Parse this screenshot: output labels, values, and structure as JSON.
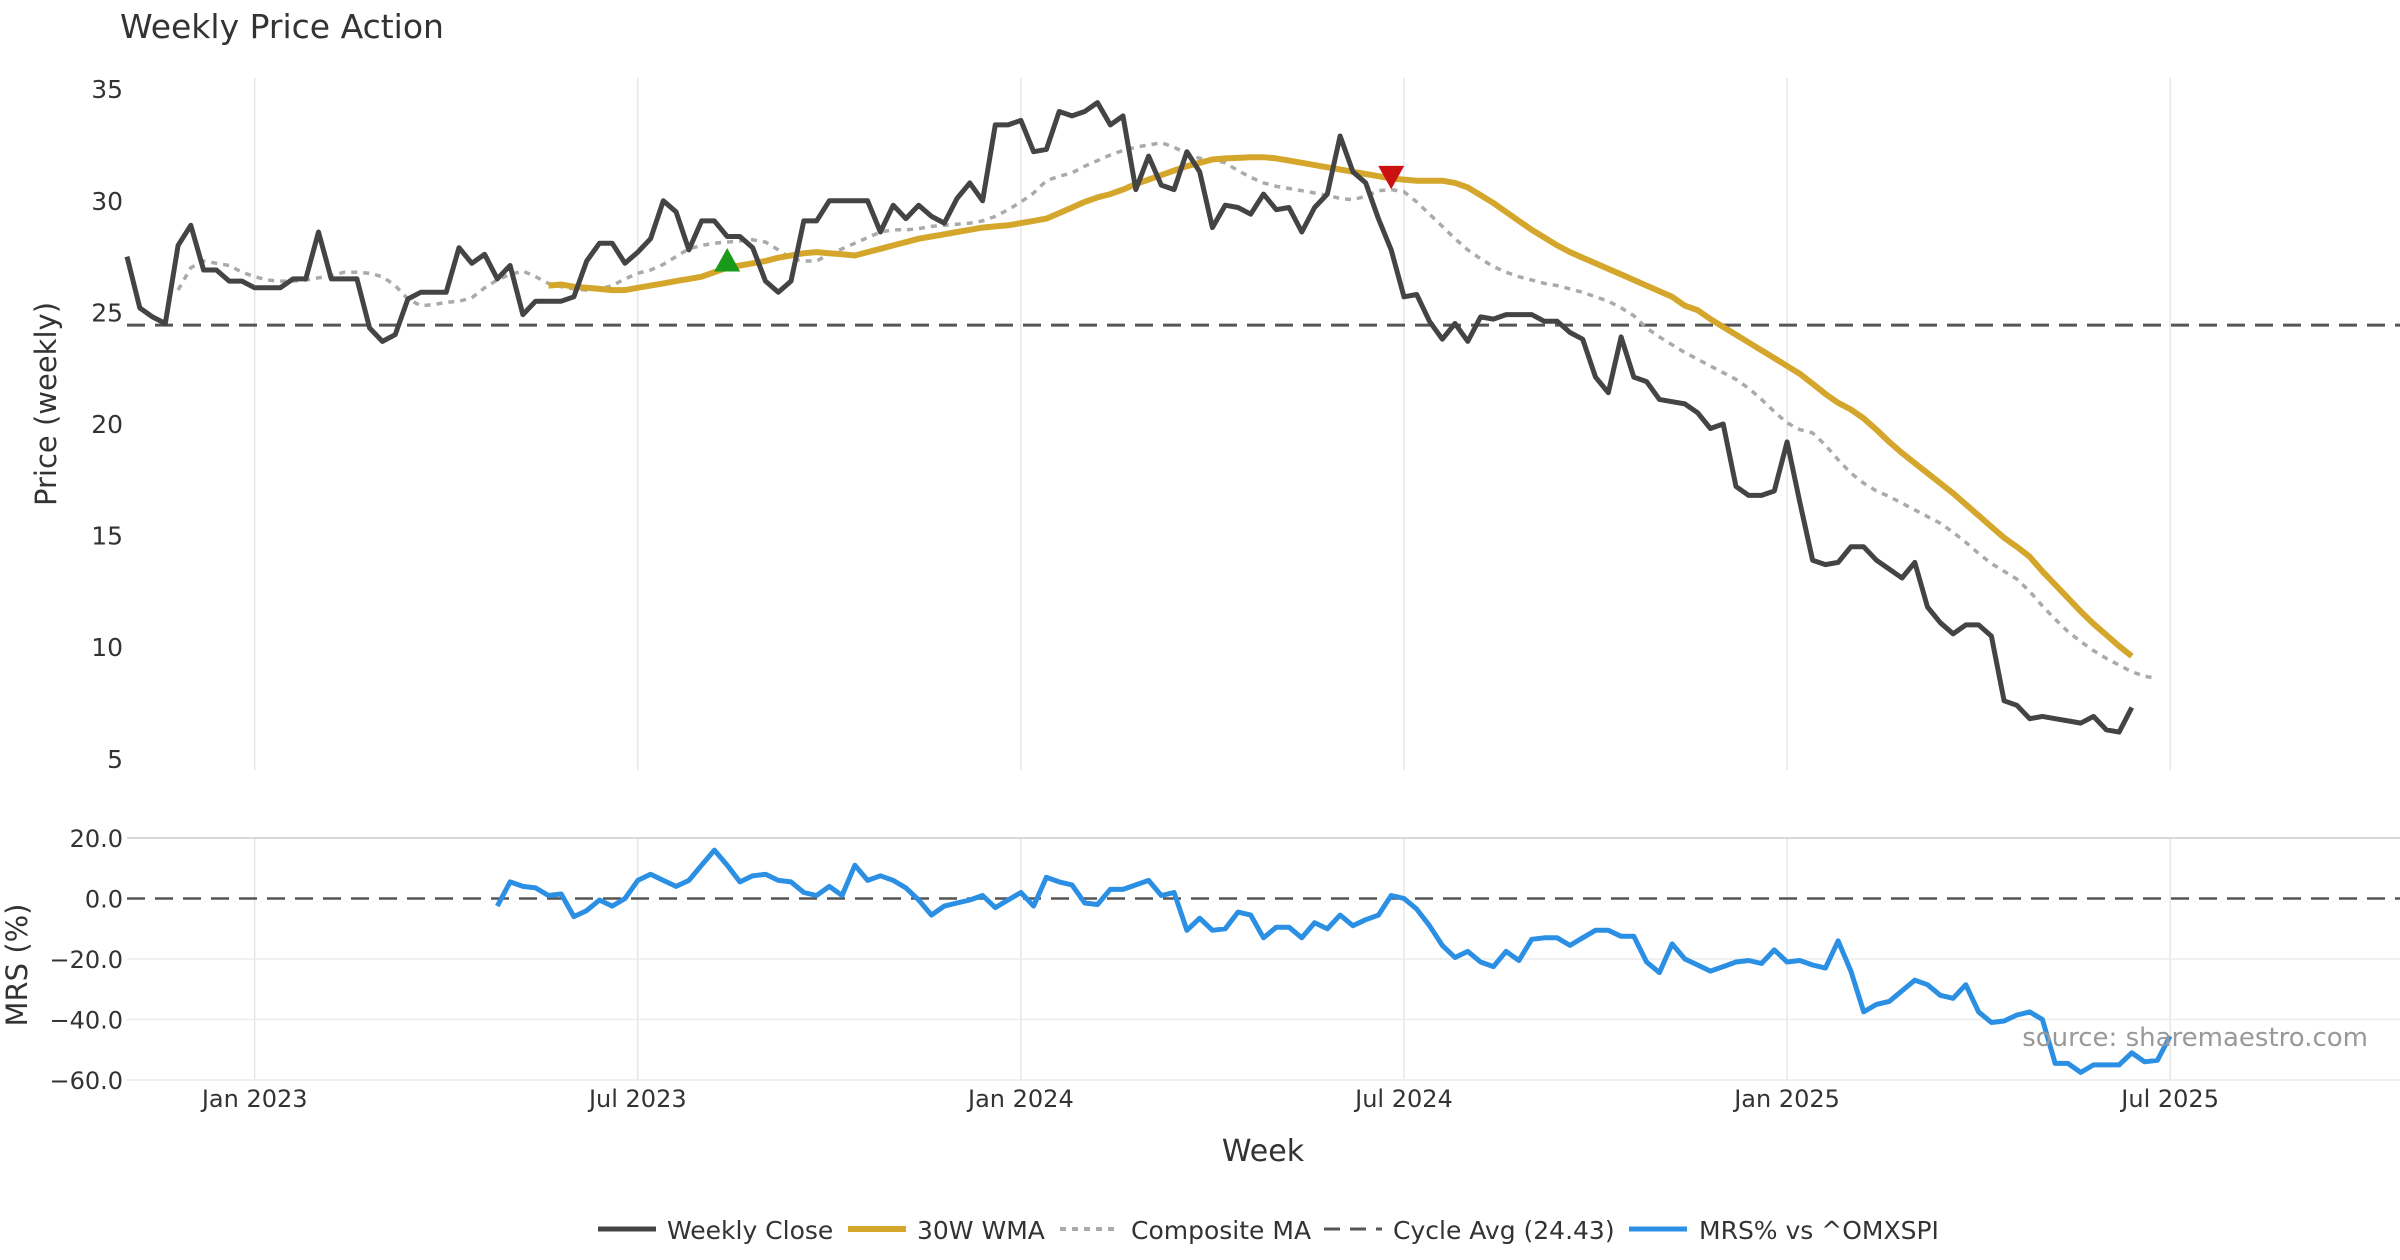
{
  "chart_data": {
    "type": "line",
    "title": "Weekly Price Action",
    "xlabel": "Week",
    "source_note": "source: sharemaestro.com",
    "x_ticks": [
      "Jan 2023",
      "Jul 2023",
      "Jan 2024",
      "Jul 2024",
      "Jan 2025",
      "Jul 2025"
    ],
    "x_tick_weeks": [
      10,
      40,
      70,
      100,
      130,
      160
    ],
    "x_range": [
      0,
      178
    ],
    "colors": {
      "close": "#444444",
      "wma": "#d4a72c",
      "composite": "#aaaaaa",
      "cycle": "#555555",
      "mrs": "#2b8fe3",
      "buy": "#1a9a1a",
      "sell": "#cc1111",
      "grid": "#e6e6e6",
      "text": "#333333"
    },
    "price_panel": {
      "ylabel": "Price (weekly)",
      "ylim": [
        4.5,
        35.5
      ],
      "yticks": [
        5,
        10,
        15,
        20,
        25,
        30,
        35
      ],
      "series": [
        {
          "name": "Weekly Close",
          "start_week": 0,
          "values": [
            27.5,
            25.2,
            24.8,
            24.5,
            28.0,
            28.9,
            26.9,
            26.9,
            26.4,
            26.4,
            26.1,
            26.1,
            26.1,
            26.5,
            26.5,
            28.6,
            26.5,
            26.5,
            26.5,
            24.3,
            23.7,
            24.0,
            25.6,
            25.9,
            25.9,
            25.9,
            27.9,
            27.2,
            27.6,
            26.5,
            27.1,
            24.9,
            25.5,
            25.5,
            25.5,
            25.7,
            27.3,
            28.1,
            28.1,
            27.2,
            27.7,
            28.3,
            30.0,
            29.5,
            27.8,
            29.1,
            29.1,
            28.4,
            28.4,
            27.9,
            26.4,
            25.9,
            26.4,
            29.1,
            29.1,
            30.0,
            30.0,
            30.0,
            30.0,
            28.6,
            29.8,
            29.2,
            29.8,
            29.3,
            29.0,
            30.1,
            30.8,
            30.0,
            33.4,
            33.4,
            33.6,
            32.2,
            32.3,
            34.0,
            33.8,
            34.0,
            34.4,
            33.4,
            33.8,
            30.5,
            32.0,
            30.7,
            30.5,
            32.2,
            31.3,
            28.8,
            29.8,
            29.7,
            29.4,
            30.3,
            29.6,
            29.7,
            28.6,
            29.7,
            30.3,
            32.9,
            31.3,
            30.8,
            29.2,
            27.8,
            25.7,
            25.8,
            24.6,
            23.8,
            24.5,
            23.7,
            24.8,
            24.7,
            24.9,
            24.9,
            24.9,
            24.6,
            24.6,
            24.1,
            23.8,
            22.1,
            21.4,
            23.9,
            22.1,
            21.9,
            21.1,
            21.0,
            20.9,
            20.5,
            19.8,
            20.0,
            17.2,
            16.8,
            16.8,
            17.0,
            19.2,
            16.5,
            13.9,
            13.7,
            13.8,
            14.5,
            14.5,
            13.9,
            13.5,
            13.1,
            13.8,
            11.8,
            11.1,
            10.6,
            11.0,
            11.0,
            10.5,
            7.6,
            7.4,
            6.8,
            6.9,
            6.8,
            6.7,
            6.6,
            6.9,
            6.3,
            6.2,
            7.3
          ]
        },
        {
          "name": "30W WMA",
          "start_week": 33,
          "values": [
            26.2,
            26.25,
            26.15,
            26.1,
            26.05,
            26.0,
            26.0,
            26.1,
            26.2,
            26.3,
            26.4,
            26.5,
            26.6,
            26.8,
            27.0,
            27.1,
            27.2,
            27.3,
            27.45,
            27.55,
            27.65,
            27.7,
            27.65,
            27.6,
            27.55,
            27.7,
            27.85,
            28.0,
            28.15,
            28.3,
            28.4,
            28.5,
            28.6,
            28.7,
            28.8,
            28.85,
            28.9,
            29.0,
            29.1,
            29.2,
            29.45,
            29.7,
            29.95,
            30.15,
            30.3,
            30.5,
            30.75,
            30.95,
            31.15,
            31.35,
            31.55,
            31.7,
            31.85,
            31.9,
            31.92,
            31.95,
            31.95,
            31.9,
            31.8,
            31.7,
            31.6,
            31.5,
            31.4,
            31.3,
            31.2,
            31.1,
            31.0,
            30.95,
            30.9,
            30.9,
            30.9,
            30.8,
            30.6,
            30.25,
            29.9,
            29.5,
            29.1,
            28.7,
            28.35,
            28.0,
            27.7,
            27.45,
            27.2,
            26.95,
            26.7,
            26.45,
            26.2,
            25.95,
            25.7,
            25.3,
            25.1,
            24.7,
            24.35,
            24.0,
            23.65,
            23.3,
            22.95,
            22.6,
            22.25,
            21.8,
            21.35,
            20.95,
            20.65,
            20.25,
            19.75,
            19.2,
            18.7,
            18.25,
            17.8,
            17.35,
            16.9,
            16.4,
            15.9,
            15.4,
            14.9,
            14.5,
            14.05,
            13.4,
            12.8,
            12.2,
            11.6,
            11.05,
            10.55,
            10.05,
            9.6
          ]
        },
        {
          "name": "Composite MA",
          "start_week": 4,
          "values": [
            26.0,
            27.0,
            27.3,
            27.2,
            27.1,
            26.8,
            26.6,
            26.45,
            26.4,
            26.4,
            26.45,
            26.55,
            26.65,
            26.8,
            26.8,
            26.75,
            26.6,
            26.2,
            25.6,
            25.3,
            25.35,
            25.45,
            25.5,
            25.65,
            26.1,
            26.45,
            26.7,
            26.85,
            26.6,
            26.3,
            26.15,
            26.05,
            26.0,
            26.05,
            26.2,
            26.5,
            26.75,
            26.9,
            27.15,
            27.5,
            27.85,
            28.0,
            28.1,
            28.15,
            28.2,
            28.25,
            28.15,
            27.8,
            27.4,
            27.3,
            27.3,
            27.6,
            27.85,
            28.1,
            28.35,
            28.6,
            28.7,
            28.7,
            28.75,
            28.85,
            28.9,
            28.95,
            29.0,
            29.1,
            29.3,
            29.6,
            29.95,
            30.35,
            30.9,
            31.1,
            31.25,
            31.55,
            31.8,
            32.05,
            32.25,
            32.4,
            32.5,
            32.6,
            32.4,
            32.1,
            31.9,
            31.85,
            31.7,
            31.35,
            31.05,
            30.8,
            30.65,
            30.55,
            30.45,
            30.35,
            30.25,
            30.1,
            30.05,
            30.2,
            30.45,
            30.5,
            30.4,
            29.95,
            29.4,
            28.85,
            28.3,
            27.8,
            27.4,
            27.05,
            26.8,
            26.6,
            26.45,
            26.3,
            26.2,
            26.05,
            25.9,
            25.7,
            25.5,
            25.2,
            24.85,
            24.3,
            23.9,
            23.55,
            23.2,
            22.9,
            22.6,
            22.3,
            22.0,
            21.6,
            21.1,
            20.55,
            20.05,
            19.75,
            19.6,
            19.05,
            18.4,
            17.8,
            17.35,
            17.0,
            16.75,
            16.45,
            16.15,
            15.85,
            15.55,
            15.15,
            14.7,
            14.2,
            13.75,
            13.4,
            13.05,
            12.5,
            11.85,
            11.25,
            10.7,
            10.25,
            9.85,
            9.5,
            9.2,
            8.9,
            8.7,
            8.6
          ]
        }
      ],
      "reference_line": {
        "name": "Cycle Avg (24.43)",
        "value": 24.43
      },
      "signals": [
        {
          "type": "buy",
          "week": 47,
          "price": 27.3
        },
        {
          "type": "sell",
          "week": 99,
          "price": 31.1
        }
      ]
    },
    "mrs_panel": {
      "ylabel": "MRS (%)",
      "ylim": [
        -60,
        20
      ],
      "yticks": [
        -60,
        -40,
        -20,
        0,
        20
      ],
      "ytick_labels": [
        "−60.0",
        "−40.0",
        "−20.0",
        "0.0",
        "20.0"
      ],
      "series": [
        {
          "name": "MRS% vs ^OMXSPI",
          "start_week": 29,
          "values": [
            -2.5,
            5.5,
            4.0,
            3.5,
            1.0,
            1.5,
            -6.0,
            -4.0,
            -0.5,
            -2.5,
            0.0,
            6.0,
            8.0,
            6.0,
            4.0,
            6.0,
            11.0,
            16.0,
            11.0,
            5.5,
            7.5,
            8.0,
            6.0,
            5.5,
            2.0,
            1.0,
            4.0,
            1.0,
            11.0,
            6.0,
            7.5,
            6.0,
            3.5,
            -0.5,
            -5.5,
            -2.5,
            -1.5,
            -0.5,
            1.0,
            -3.0,
            -0.5,
            2.0,
            -2.5,
            7.0,
            5.5,
            4.5,
            -1.5,
            -2.0,
            3.0,
            3.0,
            4.5,
            6.0,
            1.0,
            2.0,
            -10.5,
            -6.5,
            -10.5,
            -10.0,
            -4.5,
            -5.5,
            -13.0,
            -9.5,
            -9.5,
            -13.0,
            -8.0,
            -10.0,
            -5.5,
            -9.0,
            -7.0,
            -5.5,
            1.0,
            0.0,
            -3.5,
            -9.0,
            -15.5,
            -19.5,
            -17.5,
            -21.0,
            -22.5,
            -17.5,
            -20.5,
            -13.5,
            -13.0,
            -13.0,
            -15.5,
            -13.0,
            -10.5,
            -10.5,
            -12.5,
            -12.5,
            -21.0,
            -24.5,
            -15.0,
            -20.0,
            -22.0,
            -24.0,
            -22.5,
            -21.0,
            -20.5,
            -21.5,
            -17.0,
            -21.0,
            -20.5,
            -22.0,
            -23.0,
            -14.0,
            -24.0,
            -37.5,
            -35.0,
            -34.0,
            -30.5,
            -27.0,
            -28.5,
            -32.0,
            -33.0,
            -28.5,
            -37.5,
            -41.0,
            -40.5,
            -38.5,
            -37.5,
            -40.0,
            -54.5,
            -54.5,
            -57.5,
            -55.0,
            -55.0,
            -55.0,
            -51.0,
            -54.0,
            -53.5,
            -45.5
          ]
        }
      ]
    },
    "legend": {
      "placement": "bottom-center",
      "entries": [
        "Weekly Close",
        "30W WMA",
        "Composite MA",
        "Cycle Avg (24.43)",
        "MRS% vs ^OMXSPI"
      ]
    }
  }
}
